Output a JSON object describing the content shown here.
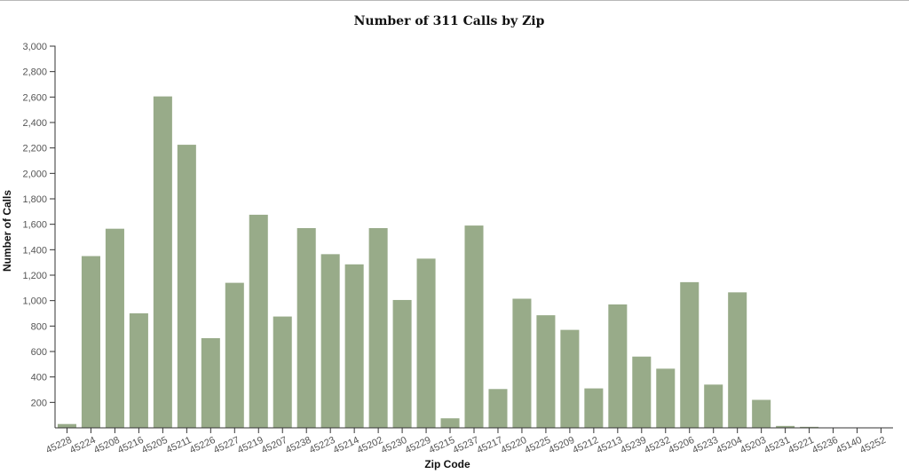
{
  "chart_data": {
    "type": "bar",
    "title": "Number of 311 Calls by Zip",
    "xlabel": "Zip Code",
    "ylabel": "Number of Calls",
    "ylim": [
      0,
      3000
    ],
    "yticks": [
      200,
      400,
      600,
      800,
      1000,
      1200,
      1400,
      1600,
      1800,
      2000,
      2200,
      2400,
      2600,
      2800,
      3000
    ],
    "ytick_labels": [
      "200",
      "400",
      "600",
      "800",
      "1,000",
      "1,200",
      "1,400",
      "1,600",
      "1,800",
      "2,000",
      "2,200",
      "2,400",
      "2,600",
      "2,800",
      "3,000"
    ],
    "grid": false,
    "bar_color": "#98ab89",
    "categories": [
      "45228",
      "45224",
      "45208",
      "45216",
      "45205",
      "45211",
      "45226",
      "45227",
      "45219",
      "45207",
      "45238",
      "45223",
      "45214",
      "45202",
      "45230",
      "45229",
      "45215",
      "45237",
      "45217",
      "45220",
      "45225",
      "45209",
      "45212",
      "45213",
      "45239",
      "45232",
      "45206",
      "45233",
      "45204",
      "45203",
      "45231",
      "45221",
      "45236",
      "45140",
      "45252"
    ],
    "values": [
      30,
      1350,
      1565,
      900,
      2605,
      2225,
      705,
      1140,
      1675,
      875,
      1570,
      1365,
      1285,
      1570,
      1005,
      1330,
      75,
      1590,
      305,
      1015,
      885,
      770,
      310,
      970,
      560,
      465,
      1145,
      340,
      1065,
      220,
      15,
      8,
      3,
      2,
      2
    ]
  }
}
